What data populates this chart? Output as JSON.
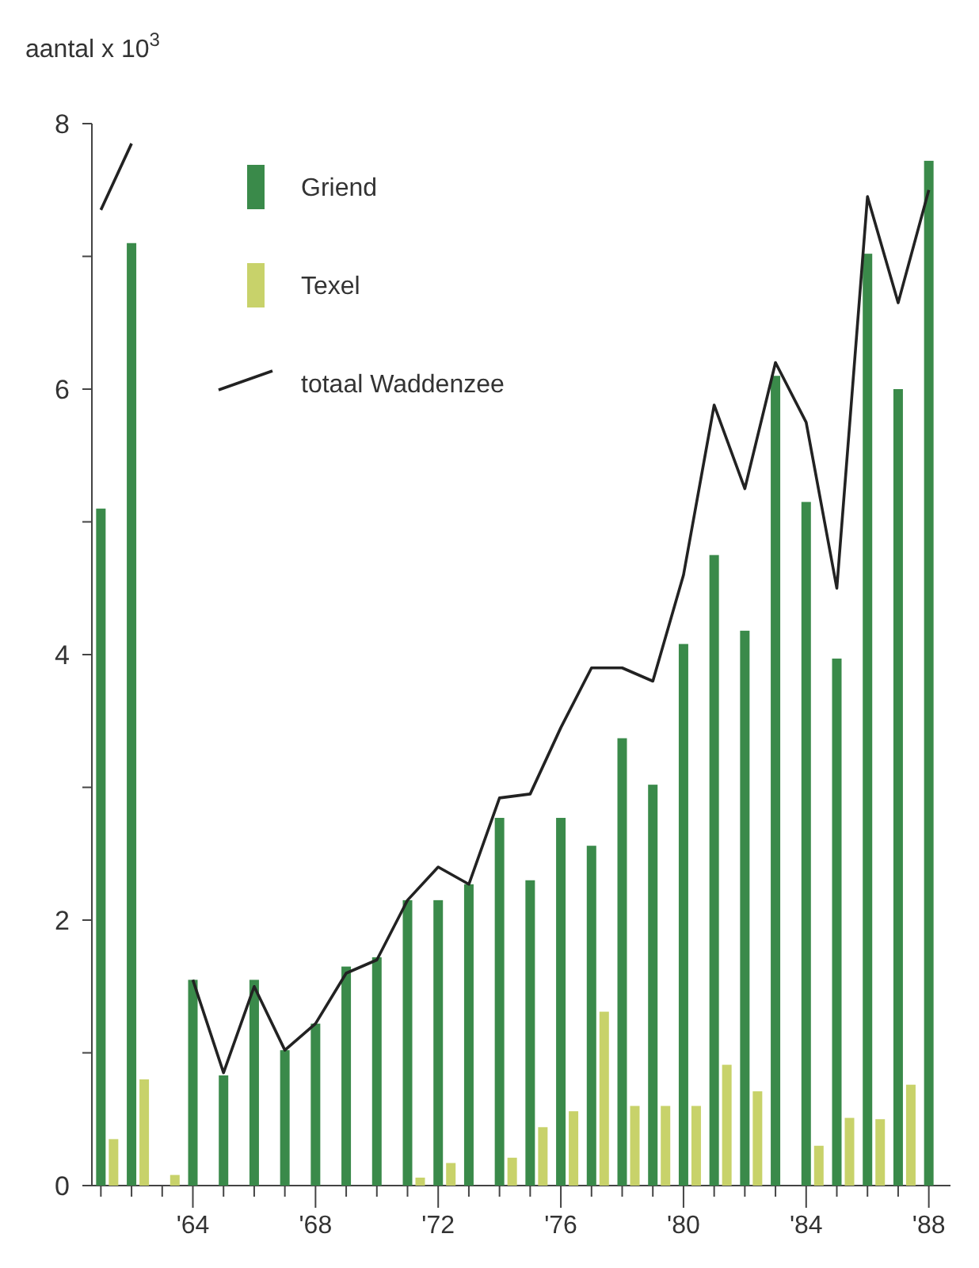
{
  "chart_data": {
    "type": "bar",
    "ylabel": "aantal x 10$^{3}$",
    "categories": [
      null,
      null,
      null,
      "'64",
      null,
      null,
      null,
      "'68",
      null,
      null,
      null,
      "'72",
      null,
      null,
      null,
      "'76",
      null,
      null,
      null,
      "'80",
      null,
      null,
      null,
      "'84",
      null,
      null,
      null,
      "'88"
    ],
    "series": [
      {
        "name": "Griend",
        "color": "#3a8a4a",
        "values": [
          5.1,
          7.1,
          null,
          1.55,
          0.83,
          1.55,
          1.02,
          1.22,
          1.65,
          1.72,
          2.15,
          2.15,
          2.27,
          2.77,
          2.3,
          2.77,
          2.56,
          3.37,
          3.02,
          4.08,
          4.75,
          4.18,
          6.1,
          5.15,
          3.97,
          7.02,
          6.0,
          7.72
        ]
      },
      {
        "name": "Texel",
        "color": "#c8d26a",
        "values": [
          0.35,
          0.8,
          0.08,
          null,
          null,
          null,
          null,
          null,
          null,
          null,
          0.06,
          0.17,
          null,
          0.21,
          0.44,
          0.56,
          1.31,
          0.6,
          0.6,
          0.6,
          0.91,
          0.71,
          null,
          0.3,
          0.51,
          0.5,
          0.76,
          null
        ]
      },
      {
        "name": "totaal  Waddenzee",
        "type": "line",
        "color": "#222222",
        "values": [
          7.35,
          7.85,
          null,
          1.55,
          0.85,
          1.5,
          1.02,
          1.22,
          1.6,
          1.7,
          2.15,
          2.4,
          2.27,
          2.92,
          2.95,
          3.45,
          3.9,
          3.9,
          3.8,
          4.6,
          5.88,
          5.25,
          6.2,
          5.75,
          4.5,
          7.45,
          6.65,
          7.5
        ]
      }
    ],
    "ylim": [
      0,
      8
    ],
    "yticks": [
      0,
      {
        "value": 1,
        "label": null
      },
      2,
      {
        "value": 3,
        "label": null
      },
      4,
      {
        "value": 5,
        "label": null
      },
      6,
      {
        "value": 7,
        "label": null
      },
      8
    ],
    "grid": false,
    "legend": "top left",
    "line_style": "solid",
    "marker": "none"
  }
}
